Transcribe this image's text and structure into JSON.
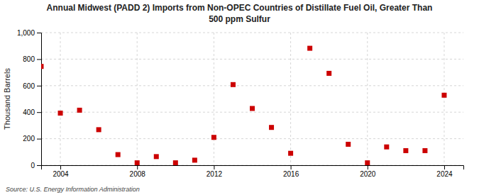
{
  "chart_data": {
    "type": "scatter",
    "title": "Annual Midwest (PADD 2) Imports from Non-OPEC Countries of Distillate Fuel Oil, Greater Than",
    "subtitle": "500 ppm Sulfur",
    "y_label": "Thousand Barrels",
    "source": "Source: U.S. Energy Information Administration",
    "x": [
      2003,
      2004,
      2005,
      2006,
      2007,
      2008,
      2009,
      2010,
      2011,
      2012,
      2013,
      2014,
      2015,
      2016,
      2017,
      2018,
      2019,
      2020,
      2021,
      2022,
      2023,
      2024
    ],
    "values": [
      745,
      393,
      415,
      268,
      80,
      18,
      65,
      18,
      38,
      210,
      608,
      428,
      285,
      90,
      882,
      693,
      158,
      18,
      138,
      110,
      110,
      528
    ],
    "color": "#cc0000",
    "marker": "square",
    "xlim": [
      2003.0,
      2025.0
    ],
    "xticks": [
      {
        "value": 2004,
        "label": "2004"
      },
      {
        "value": 2008,
        "label": "2008"
      },
      {
        "value": 2012,
        "label": "2012"
      },
      {
        "value": 2016,
        "label": "2016"
      },
      {
        "value": 2020,
        "label": "2020"
      },
      {
        "value": 2024,
        "label": "2024"
      }
    ],
    "ylim": [
      0,
      1000
    ],
    "yticks": [
      0,
      200,
      400,
      600,
      800,
      {
        "value": 1000,
        "label": "1,000"
      }
    ],
    "grid": true
  }
}
